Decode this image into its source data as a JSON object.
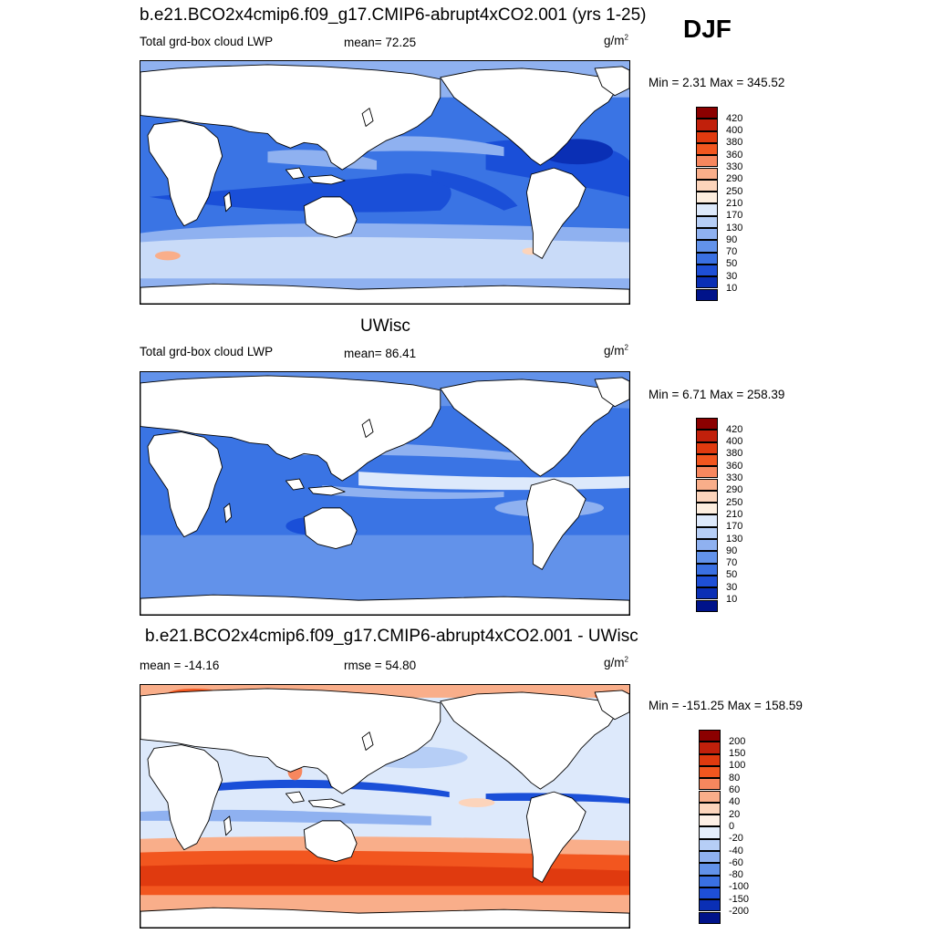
{
  "season": "DJF",
  "panels": [
    {
      "id": "top",
      "title": "b.e21.BCO2x4cmip6.f09_g17.CMIP6-abrupt4xCO2.001 (yrs 1-25)",
      "left_label": "Total grd-box cloud LWP",
      "center_label": "mean=  72.25",
      "unit_base": "g/m",
      "unit_exp": "2",
      "minmax": "Min =   2.31 Max = 345.52",
      "levels": [
        "420",
        "400",
        "380",
        "360",
        "330",
        "290",
        "250",
        "210",
        "170",
        "130",
        "90",
        "70",
        "50",
        "30",
        "10"
      ],
      "colors": [
        "#8b0000",
        "#c1200b",
        "#e03a0f",
        "#f2561f",
        "#f7875e",
        "#f9ae8a",
        "#fcd4bb",
        "#fdeedf",
        "#dde9fb",
        "#b6cef6",
        "#8fb1f0",
        "#6292ea",
        "#3a70e2",
        "#1e4fd6",
        "#0a2fb5",
        "#00138a"
      ]
    },
    {
      "id": "middle",
      "title": "UWisc",
      "left_label": "Total grd-box cloud LWP",
      "center_label": "mean=  86.41",
      "unit_base": "g/m",
      "unit_exp": "2",
      "minmax": "Min =   6.71 Max = 258.39",
      "levels": [
        "420",
        "400",
        "380",
        "360",
        "330",
        "290",
        "250",
        "210",
        "170",
        "130",
        "90",
        "70",
        "50",
        "30",
        "10"
      ],
      "colors": [
        "#8b0000",
        "#c1200b",
        "#e03a0f",
        "#f2561f",
        "#f7875e",
        "#f9ae8a",
        "#fcd4bb",
        "#fdeedf",
        "#dde9fb",
        "#b6cef6",
        "#8fb1f0",
        "#6292ea",
        "#3a70e2",
        "#1e4fd6",
        "#0a2fb5",
        "#00138a"
      ]
    },
    {
      "id": "bottom",
      "title": "b.e21.BCO2x4cmip6.f09_g17.CMIP6-abrupt4xCO2.001 - UWisc",
      "left_label": "mean = -14.16",
      "center_label": "rmse =  54.80",
      "unit_base": "g/m",
      "unit_exp": "2",
      "minmax": "Min = -151.25 Max = 158.59",
      "levels": [
        "200",
        "150",
        "100",
        "80",
        "60",
        "40",
        "20",
        "0",
        "-20",
        "-40",
        "-60",
        "-80",
        "-100",
        "-150",
        "-200"
      ],
      "colors": [
        "#8b0000",
        "#c1200b",
        "#e03a0f",
        "#f2561f",
        "#f7875e",
        "#f9ae8a",
        "#fcd4bb",
        "#fdf0e6",
        "#e4eefc",
        "#b6cef6",
        "#8fb1f0",
        "#6292ea",
        "#3a70e2",
        "#1e4fd6",
        "#0a2fb5",
        "#00138a"
      ]
    }
  ],
  "field_colors": {
    "ocean_deep": "#1a4fd8",
    "ocean_mid": "#3a74e4",
    "ocean_light": "#8fb1f0",
    "ocean_pale": "#c9dbf8",
    "warm": "#f2561f",
    "warm_light": "#f9ae8a",
    "land": "#ffffff"
  }
}
